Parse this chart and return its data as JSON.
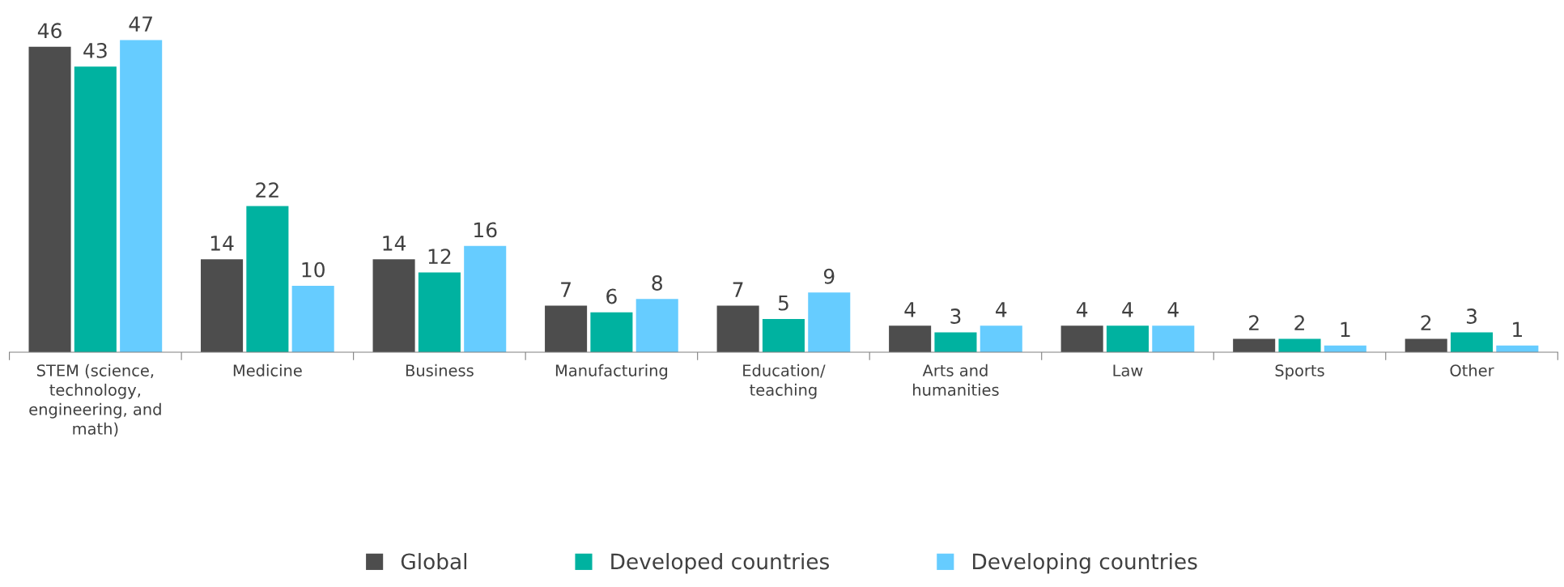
{
  "chart_data": {
    "type": "bar",
    "categories": [
      "STEM (science,\ntechnology,\nengineering, and\nmath)",
      "Medicine",
      "Business",
      "Manufacturing",
      "Education/\nteaching",
      "Arts and\nhumanities",
      "Law",
      "Sports",
      "Other"
    ],
    "series": [
      {
        "name": "Global",
        "color": "#4d4d4d",
        "values": [
          46,
          14,
          14,
          7,
          7,
          4,
          4,
          2,
          2
        ]
      },
      {
        "name": "Developed countries",
        "color": "#00b2a0",
        "values": [
          43,
          22,
          12,
          6,
          5,
          3,
          4,
          2,
          3
        ]
      },
      {
        "name": "Developing countries",
        "color": "#66ccff",
        "values": [
          47,
          10,
          16,
          8,
          9,
          4,
          4,
          1,
          1
        ]
      }
    ],
    "data_labels": true,
    "legend": "bottom",
    "grid": false
  }
}
